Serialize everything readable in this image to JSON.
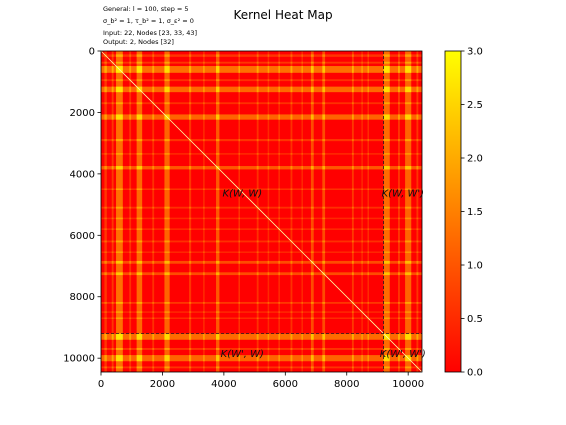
{
  "chart_data": {
    "type": "heatmap",
    "title": "Kernel Heat Map",
    "info_lines": [
      "General: l = 100, step = 5",
      "σ_b² = 1, τ_b² = 1, σ_ε² = 0",
      "Input: 22, Nodes [23, 33, 43]",
      "Output: 2, Nodes [32]"
    ],
    "xlim": [
      0,
      10450
    ],
    "ylim": [
      0,
      10450
    ],
    "y_inverted": true,
    "x_ticks": [
      0,
      2000,
      4000,
      6000,
      8000,
      10000
    ],
    "y_ticks": [
      0,
      2000,
      4000,
      6000,
      8000,
      10000
    ],
    "split_index": 9200,
    "block_labels": [
      {
        "text": "K(W, W)",
        "block": "top-left"
      },
      {
        "text": "K(W, W')",
        "block": "top-right"
      },
      {
        "text": "K(W', W)",
        "block": "bottom-left"
      },
      {
        "text": "K(W', W')",
        "block": "bottom-right"
      }
    ],
    "colorbar": {
      "min": 0.0,
      "max": 3.0,
      "ticks": [
        0.0,
        0.5,
        1.0,
        1.5,
        2.0,
        2.5,
        3.0
      ],
      "tick_labels": [
        "0.0",
        "0.5",
        "1.0",
        "1.5",
        "2.0",
        "2.5",
        "3.0"
      ],
      "colors": [
        "#ff0000",
        "#ff8000",
        "#ffff00"
      ]
    },
    "base_value": 0.1,
    "diagonal_value": 3.0,
    "hot_bands": [
      {
        "center": 600,
        "width": 220,
        "value": 2.8
      },
      {
        "center": 1250,
        "width": 180,
        "value": 2.6
      },
      {
        "center": 2150,
        "width": 170,
        "value": 2.5
      },
      {
        "center": 3800,
        "width": 110,
        "value": 2.2
      },
      {
        "center": 6880,
        "width": 90,
        "value": 1.9
      },
      {
        "center": 7250,
        "width": 90,
        "value": 1.9
      },
      {
        "center": 9300,
        "width": 200,
        "value": 2.7
      },
      {
        "center": 10000,
        "width": 200,
        "value": 2.5
      }
    ],
    "weak_bands": [
      {
        "center": 150,
        "width": 80,
        "value": 1.3
      },
      {
        "center": 380,
        "width": 60,
        "value": 1.4
      },
      {
        "center": 950,
        "width": 60,
        "value": 1.2
      },
      {
        "center": 1700,
        "width": 60,
        "value": 1.2
      },
      {
        "center": 2900,
        "width": 70,
        "value": 1.3
      },
      {
        "center": 3350,
        "width": 50,
        "value": 1.1
      },
      {
        "center": 4500,
        "width": 50,
        "value": 1.2
      },
      {
        "center": 5100,
        "width": 60,
        "value": 1.2
      },
      {
        "center": 5450,
        "width": 50,
        "value": 1.0
      },
      {
        "center": 5800,
        "width": 50,
        "value": 1.1
      },
      {
        "center": 6200,
        "width": 60,
        "value": 1.2
      },
      {
        "center": 6550,
        "width": 50,
        "value": 1.0
      },
      {
        "center": 8200,
        "width": 60,
        "value": 1.4
      },
      {
        "center": 8500,
        "width": 50,
        "value": 1.0
      },
      {
        "center": 8700,
        "width": 50,
        "value": 1.1
      },
      {
        "center": 9700,
        "width": 60,
        "value": 1.4
      },
      {
        "center": 10300,
        "width": 60,
        "value": 1.3
      }
    ]
  }
}
